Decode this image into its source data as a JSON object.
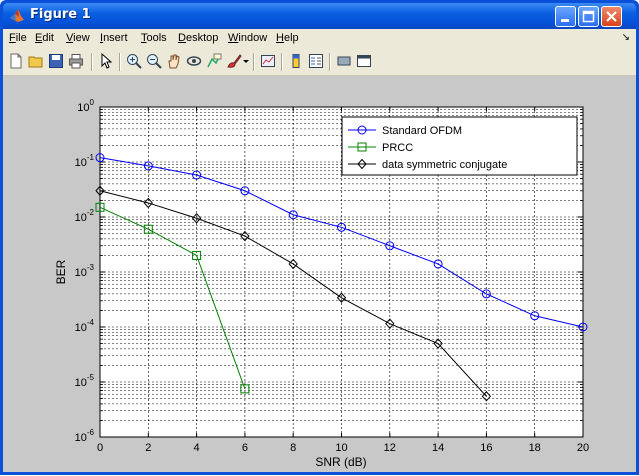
{
  "window": {
    "title": "Figure 1"
  },
  "menu": [
    {
      "label": "File",
      "u": "F",
      "rest": "ile"
    },
    {
      "label": "Edit",
      "u": "E",
      "rest": "dit"
    },
    {
      "label": "View",
      "u": "V",
      "rest": "iew"
    },
    {
      "label": "Insert",
      "u": "I",
      "rest": "nsert"
    },
    {
      "label": "Tools",
      "u": "T",
      "rest": "ools"
    },
    {
      "label": "Desktop",
      "u": "D",
      "rest": "esktop"
    },
    {
      "label": "Window",
      "u": "W",
      "rest": "indow"
    },
    {
      "label": "Help",
      "u": "H",
      "rest": "elp"
    }
  ],
  "toolbar": {
    "icons": [
      "new-figure-icon",
      "open-file-icon",
      "save-icon",
      "print-icon",
      "pointer-icon",
      "zoom-in-icon",
      "zoom-out-icon",
      "pan-hand-icon",
      "rotate-3d-icon",
      "data-cursor-icon",
      "brush-icon",
      "brush-dropdown-icon",
      "link-plot-icon",
      "colorbar-icon",
      "legend-icon",
      "hide-plot-tools-icon",
      "show-plot-tools-icon"
    ]
  },
  "colors": {
    "titlebar": "#0550d8",
    "figure_bg": "#c8c8c8",
    "axes_bg": "#ffffff",
    "standard_ofdm": "#0000ff",
    "prcc": "#008000",
    "data_symmetric": "#000000"
  },
  "chart_data": {
    "type": "line",
    "title": "",
    "xlabel": "SNR (dB)",
    "ylabel": "BER",
    "xlim": [
      0,
      20
    ],
    "ylim_exp": [
      -6,
      0
    ],
    "yscale": "log",
    "grid": true,
    "legend_position": "top-right",
    "x_ticks": [
      "0",
      "2",
      "4",
      "6",
      "8",
      "10",
      "12",
      "14",
      "16",
      "18",
      "20"
    ],
    "y_tick_exponents": [
      "0",
      "-1",
      "-2",
      "-3",
      "-4",
      "-5",
      "-6"
    ],
    "y_tick_base": "10",
    "series": [
      {
        "name": "Standard OFDM",
        "color": "#0000ff",
        "marker": "circle",
        "x": [
          0,
          2,
          4,
          6,
          8,
          10,
          12,
          14,
          16,
          18,
          20
        ],
        "y": [
          0.12,
          0.085,
          0.058,
          0.03,
          0.011,
          0.0065,
          0.003,
          0.0014,
          0.0004,
          0.00016,
          0.0001
        ]
      },
      {
        "name": "PRCC",
        "color": "#008000",
        "marker": "square",
        "x": [
          0,
          2,
          4,
          6
        ],
        "y": [
          0.015,
          0.006,
          0.002,
          7.5e-06
        ]
      },
      {
        "name": "data symmetric conjugate",
        "color": "#000000",
        "marker": "diamond",
        "x": [
          0,
          2,
          4,
          6,
          8,
          10,
          12,
          14,
          16
        ],
        "y": [
          0.03,
          0.018,
          0.0095,
          0.0045,
          0.0014,
          0.00034,
          0.000115,
          5e-05,
          5.5e-06
        ]
      }
    ]
  }
}
